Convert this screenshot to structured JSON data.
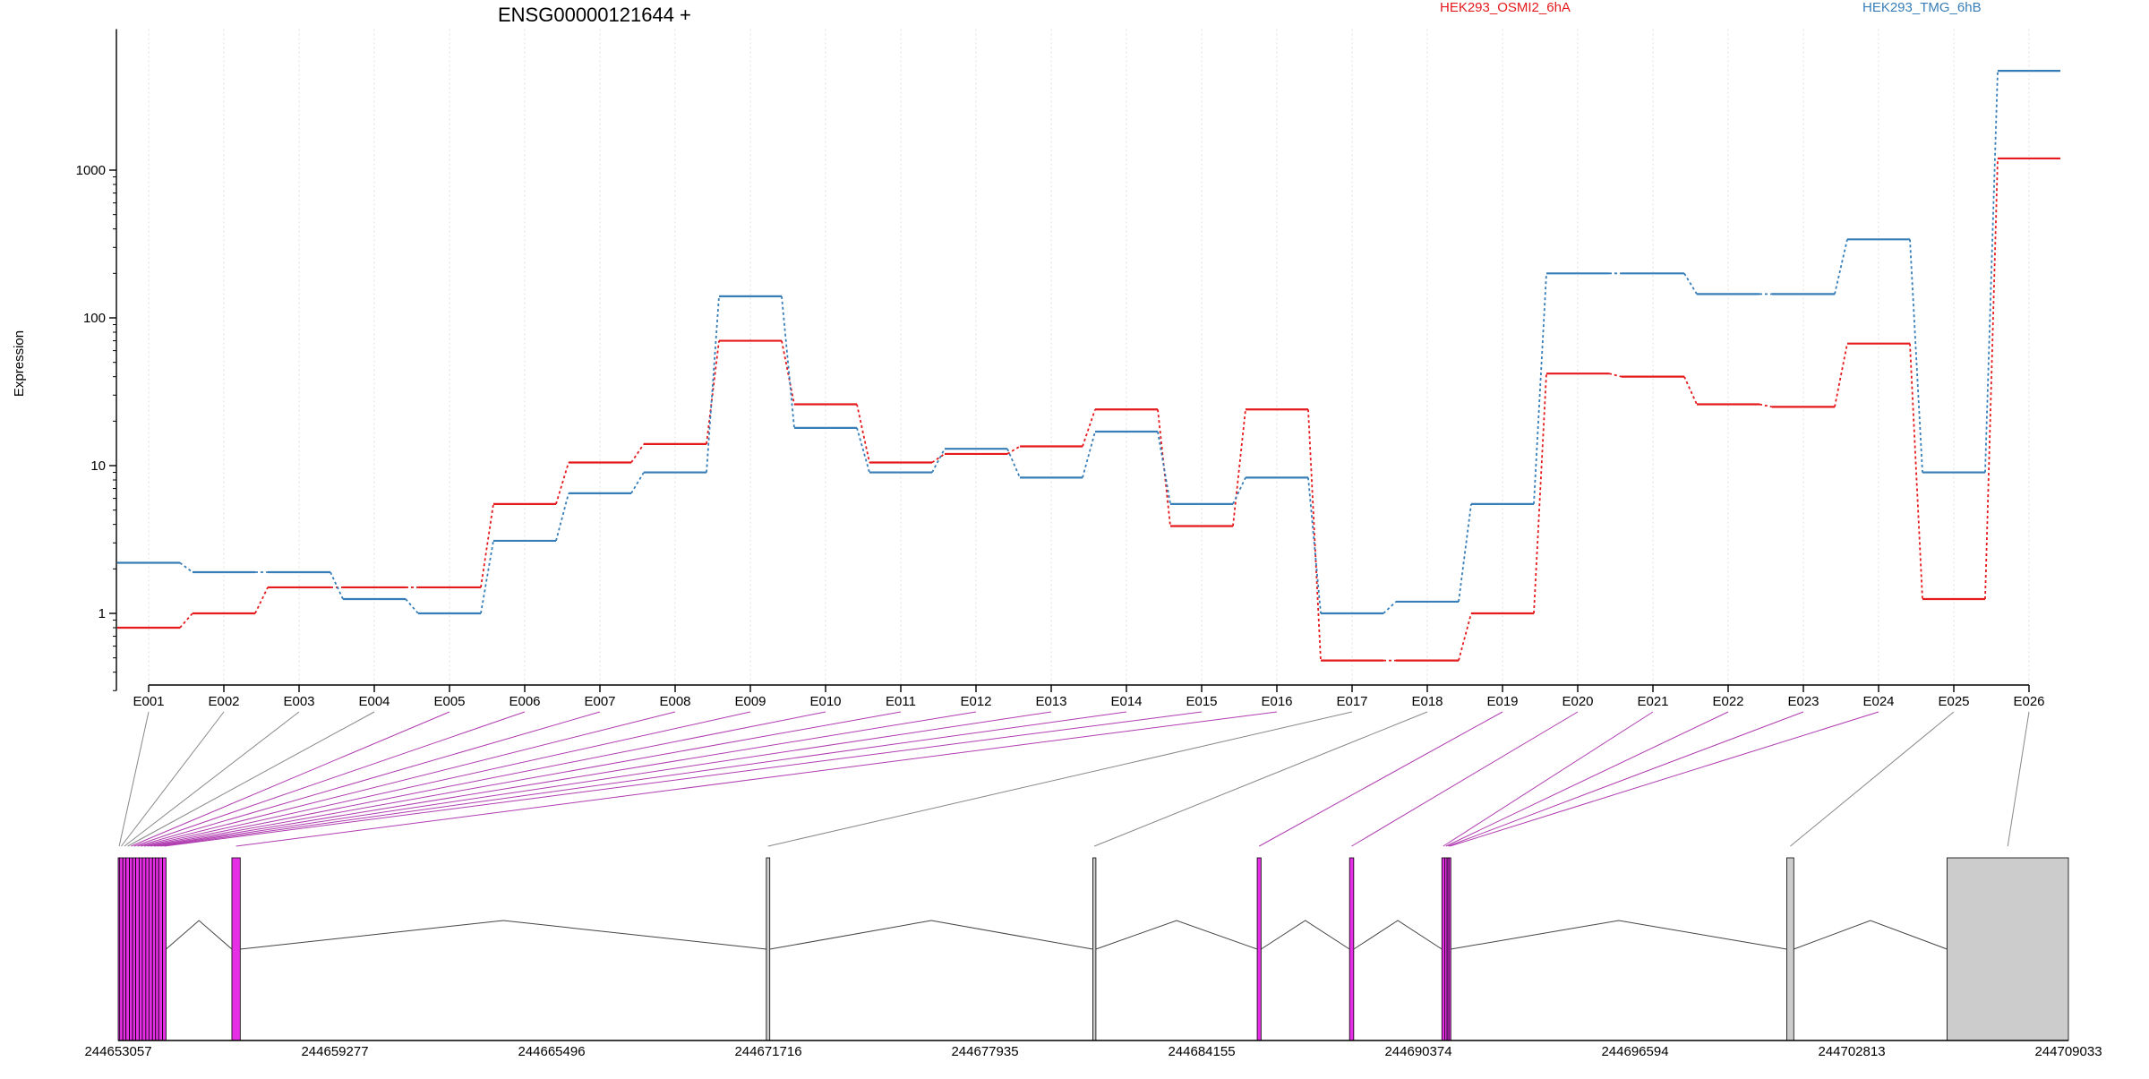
{
  "chart_data": {
    "type": "line",
    "title": "ENSG00000121644 +",
    "ylabel": "Expression",
    "xlabel": "",
    "y_scale": "log",
    "ylim": [
      0.3,
      9000
    ],
    "y_ticks": [
      1,
      10,
      100,
      1000
    ],
    "y_tick_labels": [
      "1",
      "10",
      "100",
      "1000"
    ],
    "grid": "vertical-dotted",
    "legend_placement": "top",
    "categories": [
      "E001",
      "E002",
      "E003",
      "E004",
      "E005",
      "E006",
      "E007",
      "E008",
      "E009",
      "E010",
      "E011",
      "E012",
      "E013",
      "E014",
      "E015",
      "E016",
      "E017",
      "E018",
      "E019",
      "E020",
      "E021",
      "E022",
      "E023",
      "E024",
      "E025",
      "E026"
    ],
    "series": [
      {
        "name": "HEK293_OSMI2_6hA",
        "color": "#e41a1c",
        "values": [
          0.8,
          1.0,
          1.5,
          1.5,
          1.5,
          5.5,
          10.5,
          14.0,
          70,
          26,
          10.5,
          12.0,
          13.5,
          24,
          3.9,
          24,
          0.48,
          0.48,
          1.0,
          42,
          40,
          26,
          25,
          67,
          1.25,
          1200
        ]
      },
      {
        "name": "HEK293_TMG_6hB",
        "color": "#377eb8",
        "values": [
          2.2,
          1.9,
          1.9,
          1.25,
          1.0,
          3.1,
          6.5,
          9.0,
          140,
          18,
          9.0,
          13.0,
          8.3,
          17,
          5.5,
          8.3,
          1.0,
          1.2,
          5.5,
          200,
          200,
          145,
          145,
          340,
          9.0,
          4700
        ]
      }
    ],
    "genomic_axis": {
      "tick_labels": [
        "244653057",
        "244659277",
        "244665496",
        "244671716",
        "244677935",
        "244684155",
        "244690374",
        "244696594",
        "244702813",
        "244709033"
      ],
      "range": [
        244653057,
        244709033
      ]
    },
    "exon_model": {
      "connector_colors": {
        "default": "#888888",
        "highlight": "#b03cb0"
      },
      "exons": [
        {
          "id": "E001",
          "start": 244653057,
          "end": 244653100,
          "color": "#e62ee6",
          "highlight": false
        },
        {
          "id": "E002",
          "start": 244653100,
          "end": 244653190,
          "color": "#e62ee6",
          "highlight": false
        },
        {
          "id": "E003",
          "start": 244653190,
          "end": 244653280,
          "color": "#e62ee6",
          "highlight": false
        },
        {
          "id": "E004",
          "start": 244653280,
          "end": 244653380,
          "color": "#e62ee6",
          "highlight": false
        },
        {
          "id": "E005",
          "start": 244653380,
          "end": 244653470,
          "color": "#e62ee6",
          "highlight": true
        },
        {
          "id": "E006",
          "start": 244653470,
          "end": 244653560,
          "color": "#e62ee6",
          "highlight": true
        },
        {
          "id": "E007",
          "start": 244653560,
          "end": 244653660,
          "color": "#e62ee6",
          "highlight": true
        },
        {
          "id": "E008",
          "start": 244653660,
          "end": 244653750,
          "color": "#e62ee6",
          "highlight": true
        },
        {
          "id": "E009",
          "start": 244653750,
          "end": 244653850,
          "color": "#e62ee6",
          "highlight": true
        },
        {
          "id": "E010",
          "start": 244653850,
          "end": 244653940,
          "color": "#e62ee6",
          "highlight": true
        },
        {
          "id": "E011",
          "start": 244653940,
          "end": 244654040,
          "color": "#e62ee6",
          "highlight": true
        },
        {
          "id": "E012",
          "start": 244654040,
          "end": 244654130,
          "color": "#e62ee6",
          "highlight": true
        },
        {
          "id": "E013",
          "start": 244654130,
          "end": 244654220,
          "color": "#e62ee6",
          "highlight": true
        },
        {
          "id": "E014",
          "start": 244654220,
          "end": 244654330,
          "color": "#e62ee6",
          "highlight": true
        },
        {
          "id": "E015",
          "start": 244654330,
          "end": 244654430,
          "color": "#e62ee6",
          "highlight": true
        },
        {
          "id": "E016",
          "start": 244656320,
          "end": 244656560,
          "color": "#e62ee6",
          "highlight": true
        },
        {
          "id": "E017",
          "start": 244671660,
          "end": 244671760,
          "color": "#cccccc",
          "highlight": false
        },
        {
          "id": "E018",
          "start": 244681030,
          "end": 244681120,
          "color": "#cccccc",
          "highlight": false
        },
        {
          "id": "E019",
          "start": 244685750,
          "end": 244685860,
          "color": "#e62ee6",
          "highlight": true
        },
        {
          "id": "E020",
          "start": 244688400,
          "end": 244688520,
          "color": "#e62ee6",
          "highlight": true
        },
        {
          "id": "E021",
          "start": 244691050,
          "end": 244691130,
          "color": "#e62ee6",
          "highlight": true
        },
        {
          "id": "E022",
          "start": 244691130,
          "end": 244691200,
          "color": "#e62ee6",
          "highlight": true
        },
        {
          "id": "E023",
          "start": 244691200,
          "end": 244691250,
          "color": "#e62ee6",
          "highlight": true
        },
        {
          "id": "E024",
          "start": 244691250,
          "end": 244691300,
          "color": "#e62ee6",
          "highlight": true
        },
        {
          "id": "E025",
          "start": 244700950,
          "end": 244701150,
          "color": "#cccccc",
          "highlight": false
        },
        {
          "id": "E026",
          "start": 244705550,
          "end": 244709033,
          "color": "#cccccc",
          "highlight": false
        }
      ]
    }
  }
}
